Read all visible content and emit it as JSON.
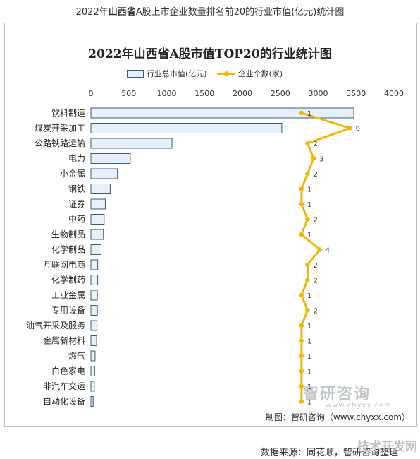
{
  "page_title_prefix": "2022年",
  "page_title_bold": "山西省",
  "page_title_suffix": "A股上市企业数量排名前20的行业市值(亿元)统计图",
  "credit": "制图：智研咨询（www.chyxx.com）",
  "watermark": {
    "logo": "智研咨询",
    "url": "www.chyxx.com"
  },
  "source": "数据来源：同花顺，智研咨询整理",
  "corner_mark": "技术开发网",
  "colors": {
    "bar_fill": "#e6f0f8",
    "bar_stroke": "#3d5a80",
    "line": "#f2b705"
  },
  "chart_data": {
    "type": "bar",
    "orientation": "horizontal",
    "title": "2022年山西省A股市值TOP20的行业统计图",
    "x_ticks": [
      0,
      500,
      1000,
      1500,
      2000,
      2500,
      3000,
      3500,
      4000
    ],
    "xlim": [
      0,
      4000
    ],
    "legend_position": "top",
    "grid": false,
    "categories": [
      "饮料制造",
      "煤炭开采加工",
      "公路铁路运输",
      "电力",
      "小金属",
      "钢铁",
      "证券",
      "中药",
      "生物制品",
      "化学制品",
      "互联网电商",
      "化学制药",
      "工业金属",
      "专用设备",
      "油气开采及服务",
      "金属新材料",
      "燃气",
      "白色家电",
      "非汽车交运",
      "自动化设备"
    ],
    "series": [
      {
        "name": "行业总市值(亿元)",
        "type": "bar",
        "values": [
          3470,
          2520,
          1070,
          520,
          350,
          255,
          190,
          175,
          165,
          135,
          90,
          90,
          85,
          85,
          80,
          75,
          55,
          50,
          45,
          30
        ]
      },
      {
        "name": "企业个数(家)",
        "type": "line",
        "values": [
          1,
          9,
          2,
          3,
          2,
          1,
          1,
          2,
          1,
          4,
          2,
          2,
          1,
          2,
          1,
          1,
          1,
          1,
          1,
          1
        ]
      }
    ]
  }
}
